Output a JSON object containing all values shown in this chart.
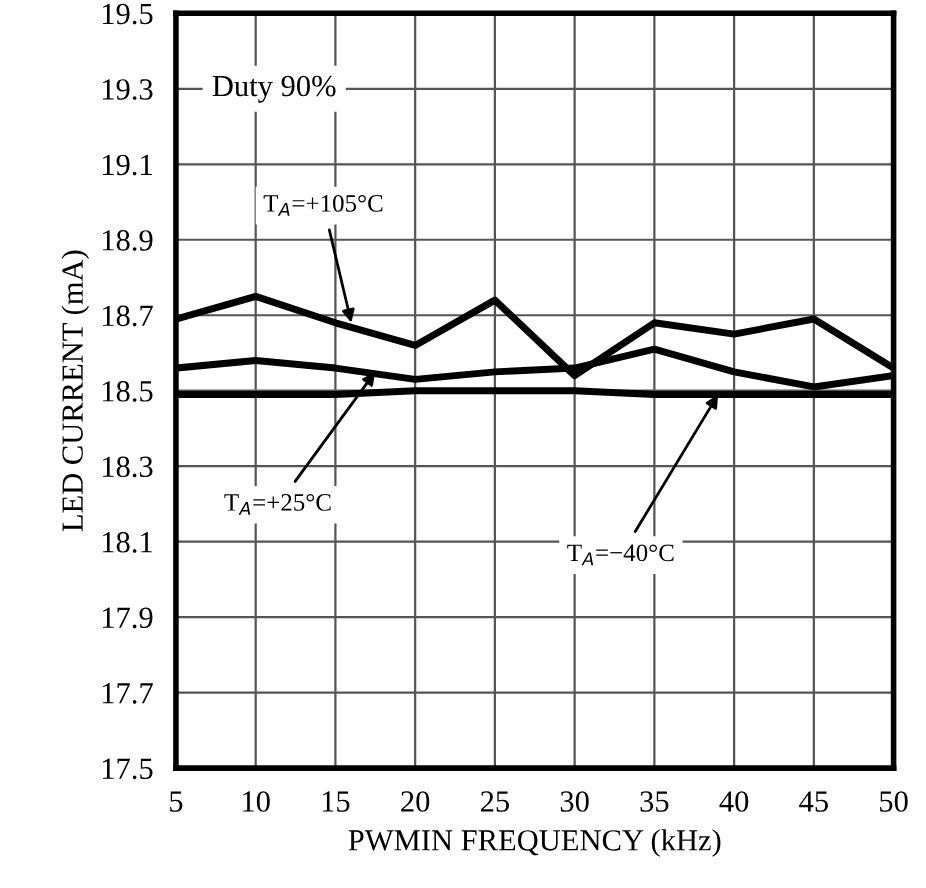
{
  "chart_data": {
    "type": "line",
    "xlabel": "PWMIN FREQUENCY (kHz)",
    "ylabel": "LED CURRENT (mA)",
    "x": [
      5,
      10,
      15,
      20,
      25,
      30,
      35,
      40,
      45,
      50
    ],
    "series": [
      {
        "color": "#000000",
        "values": [
          18.69,
          18.75,
          18.68,
          18.62,
          18.74,
          18.54,
          18.68,
          18.65,
          18.69,
          18.56
        ]
      },
      {
        "color": "#000000",
        "values": [
          18.56,
          18.58,
          18.56,
          18.53,
          18.55,
          18.56,
          18.61,
          18.55,
          18.51,
          18.54
        ]
      },
      {
        "color": "#000000",
        "values": [
          18.49,
          18.49,
          18.49,
          18.5,
          18.5,
          18.5,
          18.49,
          18.49,
          18.49,
          18.49
        ]
      }
    ],
    "annotations": [
      "Duty 90%",
      {
        "text": "T$_{A}$=+105°C",
        "x": 16,
        "y": 18.68
      },
      {
        "text": "T$_{A}$=+25°C",
        "x": 17.5,
        "y": 18.55
      },
      {
        "text": "T$_{A}$=−40°C",
        "x": 39,
        "y": 18.49
      }
    ],
    "xlim": [
      5,
      50
    ],
    "xticks": [
      5,
      10,
      15,
      20,
      25,
      30,
      35,
      40,
      45,
      50
    ],
    "ylim": [
      17.5,
      19.5
    ],
    "yticks": [
      17.5,
      17.7,
      17.9,
      18.1,
      18.3,
      18.5,
      18.7,
      18.9,
      19.1,
      19.3,
      19.5
    ],
    "grid": true,
    "legend": false,
    "marker": "none",
    "line_style": "solid"
  }
}
